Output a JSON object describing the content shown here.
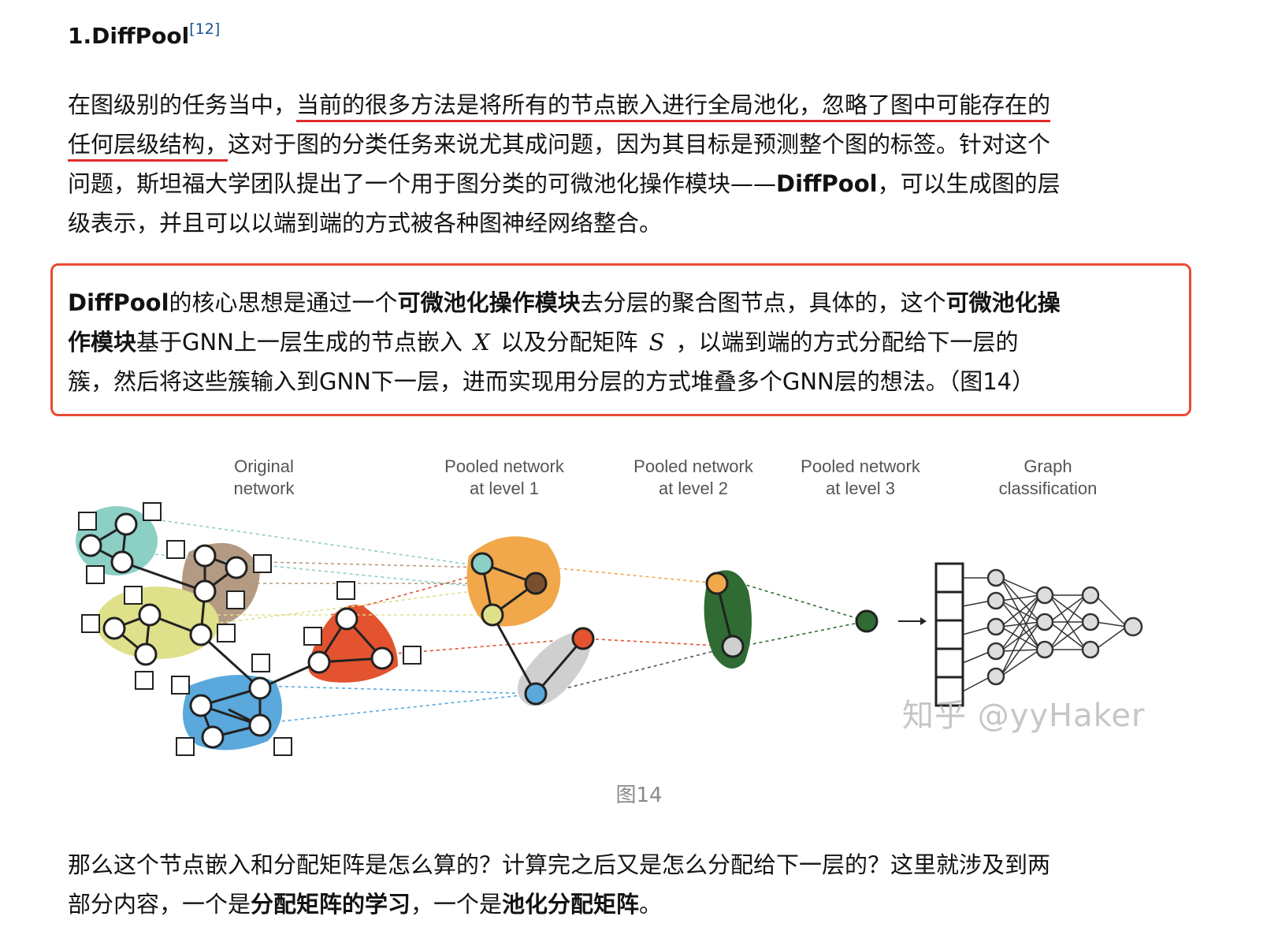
{
  "heading": {
    "title": "1.DiffPool",
    "ref": "[12]"
  },
  "intro": {
    "l1a": "在图级别的任务当中，",
    "l1u": "当前的很多方法是将所有的节点嵌入进行全局池化，忽略了图中可能存在的",
    "l2u": "任何层级结构，",
    "l2b": "这对于图的分类任务来说尤其成问题，因为其目标是预测整个图的标签。针对这个",
    "l3a": "问题，斯坦福大学团队提出了一个用于图分类的可微池化操作模块——",
    "l3b": "DiffPool",
    "l3c": "，可以生成图的层",
    "l4": "级表示，并且可以以端到端的方式被各种图神经网络整合。"
  },
  "callout": {
    "l1a": "DiffPool",
    "l1b": "的核心思想是通过一个",
    "l1c": "可微池化操作模块",
    "l1d": "去分层的聚合图节点，具体的，这个",
    "l1e": "可微池化操",
    "l2a": "作模块",
    "l2b": "基于GNN上一层生成的节点嵌入",
    "x": "X",
    "l2c": "以及分配矩阵",
    "s": "S",
    "l2d": "，以端到端的方式分配给下一层的",
    "l3": "簇，然后将这些簇输入到GNN下一层，进而实现用分层的方式堆叠多个GNN层的想法。（图14）"
  },
  "figure": {
    "col_titles": [
      [
        "Original",
        "network"
      ],
      [
        "Pooled network",
        "at level 1"
      ],
      [
        "Pooled network",
        "at level 2"
      ],
      [
        "Pooled network",
        "at level 3"
      ],
      [
        "Graph",
        "classification"
      ]
    ],
    "watermark": "知乎 @yyHaker",
    "caption": "图14",
    "colors": {
      "teal": "#8ccfc4",
      "brown": "#b49a82",
      "yellow": "#dfe08a",
      "red": "#e3532f",
      "blue": "#5aa8dc",
      "orange": "#f0a84a",
      "gray": "#cfcfcf",
      "green": "#2f6b33"
    }
  },
  "outro": {
    "l1": "那么这个节点嵌入和分配矩阵是怎么算的？计算完之后又是怎么分配给下一层的？这里就涉及到两",
    "l2a": "部分内容，一个是",
    "l2b": "分配矩阵的学习",
    "l2c": "，一个是",
    "l2d": "池化分配矩阵",
    "l2e": "。"
  }
}
